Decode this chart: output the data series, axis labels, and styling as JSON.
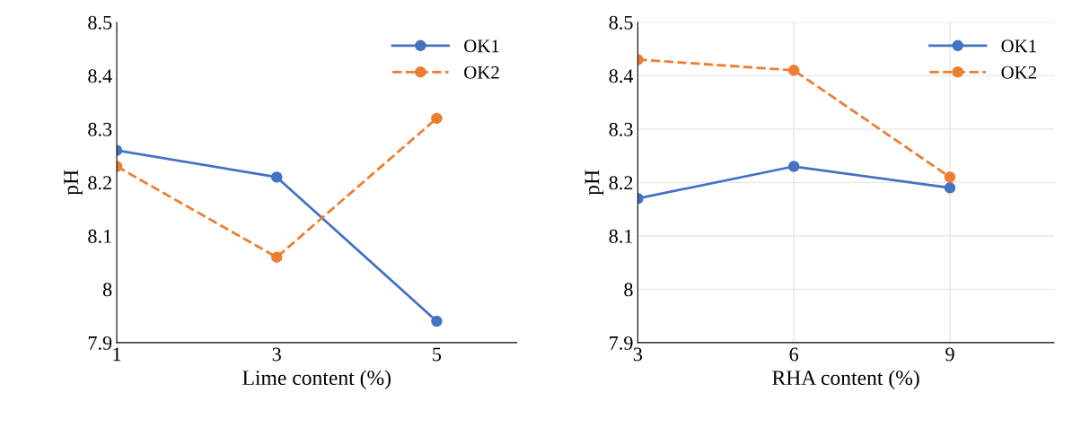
{
  "chart_data": [
    {
      "type": "line",
      "xlabel": "Lime content (%)",
      "ylabel": "pH",
      "x": [
        1,
        3,
        5
      ],
      "xlim": [
        1,
        6
      ],
      "xticks": [
        1,
        3,
        5
      ],
      "ylim": [
        7.9,
        8.5
      ],
      "yticks": [
        7.9,
        {
          "value": 8,
          "label": "8"
        },
        8.1,
        8.2,
        8.3,
        8.4,
        8.5
      ],
      "grid": false,
      "legend": "top right",
      "series": [
        {
          "name": "OK1",
          "color": "#4472c4",
          "values": [
            8.26,
            8.21,
            7.94
          ],
          "marker": "circle",
          "line_style": "solid"
        },
        {
          "name": "OK2",
          "color": "#ed7d31",
          "values": [
            8.23,
            8.06,
            8.32
          ],
          "marker": "circle",
          "line_style": "dashed"
        }
      ]
    },
    {
      "type": "line",
      "xlabel": "RHA content (%)",
      "ylabel": "pH",
      "x": [
        3,
        6,
        9
      ],
      "xlim": [
        3,
        11
      ],
      "xticks": [
        3,
        6,
        9
      ],
      "ylim": [
        7.9,
        8.5
      ],
      "yticks": [
        7.9,
        {
          "value": 8,
          "label": "8"
        },
        8.1,
        8.2,
        8.3,
        8.4,
        8.5
      ],
      "grid": true,
      "legend": "top right",
      "series": [
        {
          "name": "OK1",
          "color": "#4472c4",
          "values": [
            8.17,
            8.23,
            8.19
          ],
          "marker": "circle",
          "line_style": "solid"
        },
        {
          "name": "OK2",
          "color": "#ed7d31",
          "values": [
            8.43,
            8.41,
            8.21
          ],
          "marker": "circle",
          "line_style": "dashed"
        }
      ]
    }
  ]
}
